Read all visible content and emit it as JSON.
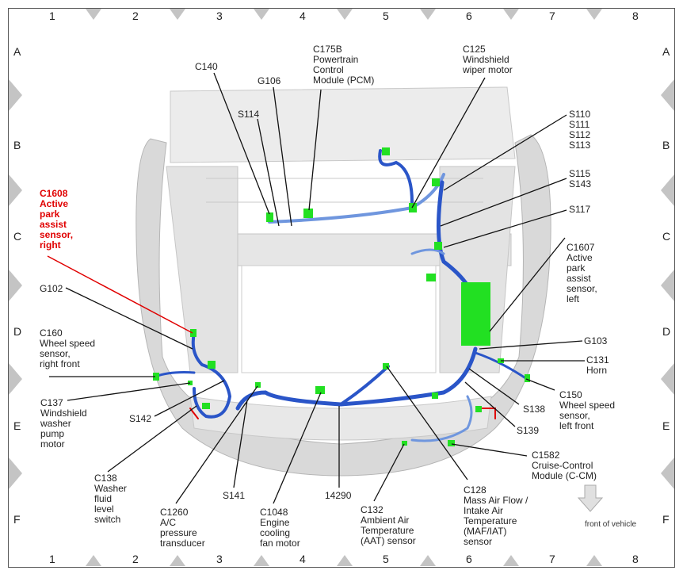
{
  "grid": {
    "columns": [
      "1",
      "2",
      "3",
      "4",
      "5",
      "6",
      "7",
      "8"
    ],
    "rows": [
      "A",
      "B",
      "C",
      "D",
      "E",
      "F"
    ]
  },
  "labels": {
    "c140": "C140",
    "g106": "G106",
    "s114": "S114",
    "c175b": "C175B\nPowertrain\nControl\nModule (PCM)",
    "c125": "C125\nWindshield\nwiper motor",
    "s110": "S110\nS111\nS112\nS113",
    "s115": "S115\nS143",
    "s117": "S117",
    "c1607": "C1607\nActive\npark\nassist\nsensor,\nleft",
    "c1608": "C1608\nActive\npark\nassist\nsensor,\nright",
    "g102": "G102",
    "c160": "C160\nWheel speed\nsensor,\nright front",
    "c137": "C137\nWindshield\nwasher\npump\nmotor",
    "s142": "S142",
    "c138": "C138\nWasher\nfluid\nlevel\nswitch",
    "c1260": "C1260\nA/C\npressure\ntransducer",
    "s141": "S141",
    "c1048": "C1048\nEngine\ncooling\nfan motor",
    "w14290": "14290",
    "c132": "C132\nAmbient Air\nTemperature\n(AAT) sensor",
    "c128": "C128\nMass Air Flow /\nIntake Air\nTemperature\n(MAF/IAT)\nsensor",
    "c1582": "C1582\nCruise-Control\nModule (C-CM)",
    "g103": "G103",
    "c131": "C131\nHorn",
    "c150": "C150\nWheel speed\nsensor,\nleft front",
    "s138": "S138",
    "s139": "S139"
  },
  "front_of_vehicle": "front of vehicle",
  "colors": {
    "harness": "#2a55c8",
    "harness_light": "#6f96de",
    "connector": "#22e022",
    "highlight": "#e00000",
    "body": "#d6d6d6"
  }
}
